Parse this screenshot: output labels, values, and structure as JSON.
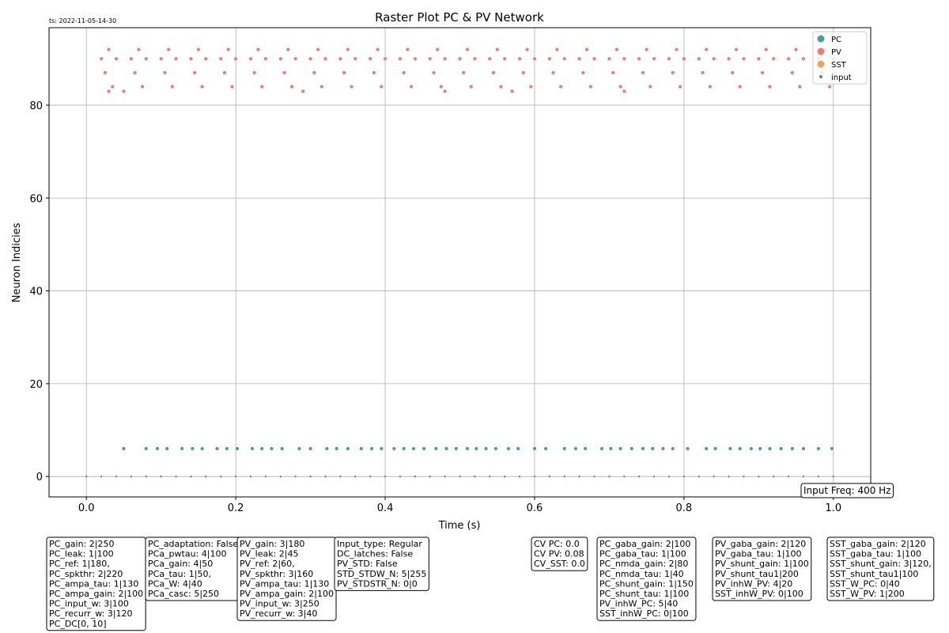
{
  "chart_data": {
    "type": "scatter",
    "title": "Raster Plot PC & PV Network",
    "timestamp": "ts: 2022-11-05-14-30",
    "x_label": "Time (s)",
    "y_label": "Neuron Indicies",
    "xlim": [
      -0.05,
      1.05
    ],
    "ylim": [
      -4.4,
      96.7
    ],
    "xticks": [
      {
        "value": 0,
        "label": "0.0"
      },
      0.2,
      0.4,
      0.6,
      0.8,
      {
        "value": 1,
        "label": "1.0"
      }
    ],
    "yticks": [
      0,
      20,
      40,
      60,
      80
    ],
    "grid": true,
    "legend": "upper right",
    "series": [
      {
        "name": "PC",
        "color": "#4f9a9a",
        "x": [
          0.05,
          0.08,
          0.095,
          0.108,
          0.128,
          0.142,
          0.155,
          0.175,
          0.188,
          0.202,
          0.222,
          0.235,
          0.248,
          0.262,
          0.285,
          0.3,
          0.322,
          0.335,
          0.35,
          0.368,
          0.382,
          0.395,
          0.412,
          0.425,
          0.438,
          0.452,
          0.468,
          0.482,
          0.495,
          0.51,
          0.522,
          0.535,
          0.548,
          0.565,
          0.578,
          0.6,
          0.615,
          0.64,
          0.655,
          0.668,
          0.69,
          0.702,
          0.715,
          0.73,
          0.745,
          0.758,
          0.772,
          0.785,
          0.805,
          0.83,
          0.842,
          0.862,
          0.875,
          0.89,
          0.902,
          0.915,
          0.93,
          0.945,
          0.96,
          0.98,
          0.998
        ],
        "y": [
          6,
          6,
          6,
          6,
          6,
          6,
          6,
          6,
          6,
          6,
          6,
          6,
          6,
          6,
          6,
          6,
          6,
          6,
          6,
          6,
          6,
          6,
          6,
          6,
          6,
          6,
          6,
          6,
          6,
          6,
          6,
          6,
          6,
          6,
          6,
          6,
          6,
          6,
          6,
          6,
          6,
          6,
          6,
          6,
          6,
          6,
          6,
          6,
          6,
          6,
          6,
          6,
          6,
          6,
          6,
          6,
          6,
          6,
          6,
          6,
          6
        ]
      },
      {
        "name": "PV",
        "color": "#e87b7b",
        "x": [
          0.02,
          0.04,
          0.06,
          0.08,
          0.1,
          0.12,
          0.14,
          0.16,
          0.18,
          0.2,
          0.22,
          0.24,
          0.26,
          0.28,
          0.3,
          0.32,
          0.34,
          0.36,
          0.38,
          0.4,
          0.42,
          0.44,
          0.46,
          0.48,
          0.5,
          0.52,
          0.54,
          0.56,
          0.58,
          0.6,
          0.62,
          0.64,
          0.66,
          0.68,
          0.7,
          0.72,
          0.74,
          0.76,
          0.78,
          0.8,
          0.82,
          0.84,
          0.86,
          0.88,
          0.9,
          0.92,
          0.94,
          0.96,
          0.98,
          1.0,
          0.03,
          0.07,
          0.11,
          0.15,
          0.19,
          0.23,
          0.27,
          0.31,
          0.35,
          0.39,
          0.43,
          0.47,
          0.51,
          0.55,
          0.59,
          0.63,
          0.67,
          0.71,
          0.75,
          0.79,
          0.83,
          0.87,
          0.91,
          0.95,
          0.99,
          0.025,
          0.065,
          0.105,
          0.145,
          0.185,
          0.225,
          0.265,
          0.305,
          0.345,
          0.385,
          0.425,
          0.465,
          0.505,
          0.545,
          0.585,
          0.625,
          0.665,
          0.705,
          0.745,
          0.785,
          0.825,
          0.865,
          0.905,
          0.945,
          0.985,
          0.035,
          0.075,
          0.115,
          0.155,
          0.195,
          0.235,
          0.275,
          0.315,
          0.355,
          0.395,
          0.435,
          0.475,
          0.515,
          0.555,
          0.595,
          0.635,
          0.675,
          0.715,
          0.755,
          0.795,
          0.835,
          0.875,
          0.915,
          0.955,
          0.995,
          0.03,
          0.05,
          0.29,
          0.48,
          0.57,
          0.72
        ],
        "y": [
          90,
          90,
          90,
          90,
          90,
          90,
          90,
          90,
          90,
          90,
          90,
          90,
          90,
          90,
          90,
          90,
          90,
          90,
          90,
          90,
          90,
          90,
          90,
          90,
          90,
          90,
          90,
          90,
          90,
          90,
          90,
          90,
          90,
          90,
          90,
          90,
          90,
          90,
          90,
          90,
          90,
          90,
          90,
          90,
          90,
          90,
          90,
          90,
          90,
          90,
          92,
          92,
          92,
          92,
          92,
          92,
          92,
          92,
          92,
          92,
          92,
          92,
          92,
          92,
          92,
          92,
          92,
          92,
          92,
          92,
          92,
          92,
          92,
          92,
          92,
          87,
          87,
          87,
          87,
          87,
          87,
          87,
          87,
          87,
          87,
          87,
          87,
          87,
          87,
          87,
          87,
          87,
          87,
          87,
          87,
          87,
          87,
          87,
          87,
          87,
          84,
          84,
          84,
          84,
          84,
          84,
          84,
          84,
          84,
          84,
          84,
          84,
          84,
          84,
          84,
          84,
          84,
          84,
          84,
          84,
          84,
          84,
          84,
          84,
          84,
          83,
          83,
          83,
          83,
          83,
          83
        ]
      },
      {
        "name": "SST",
        "color": "#f0a05a",
        "x": [],
        "y": []
      },
      {
        "name": "input",
        "color": "#5f7f8f",
        "x": [
          0,
          0.02,
          0.04,
          0.06,
          0.08,
          0.1,
          0.12,
          0.14,
          0.16,
          0.18,
          0.2,
          0.22,
          0.24,
          0.26,
          0.28,
          0.3,
          0.32,
          0.34,
          0.36,
          0.38,
          0.4,
          0.42,
          0.44,
          0.46,
          0.48,
          0.5,
          0.52,
          0.54,
          0.56,
          0.58,
          0.6,
          0.62,
          0.64,
          0.66,
          0.68,
          0.7,
          0.72,
          0.74,
          0.76,
          0.78,
          0.8,
          0.82,
          0.84,
          0.86,
          0.88,
          0.9,
          0.92,
          0.94,
          0.96,
          0.98,
          1.0
        ],
        "y": [
          0,
          0,
          0,
          0,
          0,
          0,
          0,
          0,
          0,
          0,
          0,
          0,
          0,
          0,
          0,
          0,
          0,
          0,
          0,
          0,
          0,
          0,
          0,
          0,
          0,
          0,
          0,
          0,
          0,
          0,
          0,
          0,
          0,
          0,
          0,
          0,
          0,
          0,
          0,
          0,
          0,
          0,
          0,
          0,
          0,
          0,
          0,
          0,
          0,
          0,
          0
        ]
      }
    ],
    "input_freq": "Input Freq: 400 Hz",
    "parameter_boxes": [
      [
        "PC_gain: 2|250",
        "PC_leak: 1|100",
        "PC_ref: 1|180,",
        "PC_spkthr: 2|220",
        "PC_ampa_tau: 1|130",
        "PC_ampa_gain: 2|100",
        "PC_input_w: 3|100",
        "PC_recurr_w: 3|120",
        "PC_DC[0, 10]"
      ],
      [
        "PC_adaptation: False",
        "PCa_pwtau: 4|100",
        "PCa_gain: 4|50",
        "PCa_tau: 1|50,",
        "PCa_W: 4|40",
        "PCa_casc: 5|250"
      ],
      [
        "PV_gain: 3|180",
        "PV_leak: 2|45",
        "PV_ref: 2|60,",
        "PV_spkthr: 3|160",
        "PV_ampa_tau: 1|130",
        "PV_ampa_gain: 2|100",
        "PV_input_w: 3|250",
        "PV_recurr_w: 3|40"
      ],
      [
        "Input_type: Regular",
        "DC_latches: False",
        "PV_STD: False",
        "STD_STDW_N: 5|255",
        "PV_STDSTR_N: 0|0"
      ],
      [
        "CV PC: 0.0",
        "CV PV: 0.08",
        "CV_SST: 0.0"
      ],
      [
        "PC_gaba_gain: 2|100",
        "PC_gaba_tau: 1|100",
        "PC_nmda_gain: 2|80",
        "PC_nmda_tau: 1|40",
        "PC_shunt_gain: 1|150",
        "PC_shunt_tau: 1|100",
        "PV_inhW_PC: 5|40",
        "SST_inhW_PC: 0|100"
      ],
      [
        "PV_gaba_gain: 2|120",
        "PV_gaba_tau: 1|100",
        "PV_shunt_gain: 1|100",
        "PV_shunt_tau1|200",
        "PV_inhW_PV: 4|20",
        "SST_inhW_PV: 0|100"
      ],
      [
        "SST_gaba_gain: 2|120",
        "SST_gaba_tau: 1|100",
        "SST_shunt_gain: 3|120,",
        "SST_shunt_tau1|100",
        "SST_W_PC: 0|40",
        "SST_W_PV: 1|200"
      ]
    ]
  }
}
